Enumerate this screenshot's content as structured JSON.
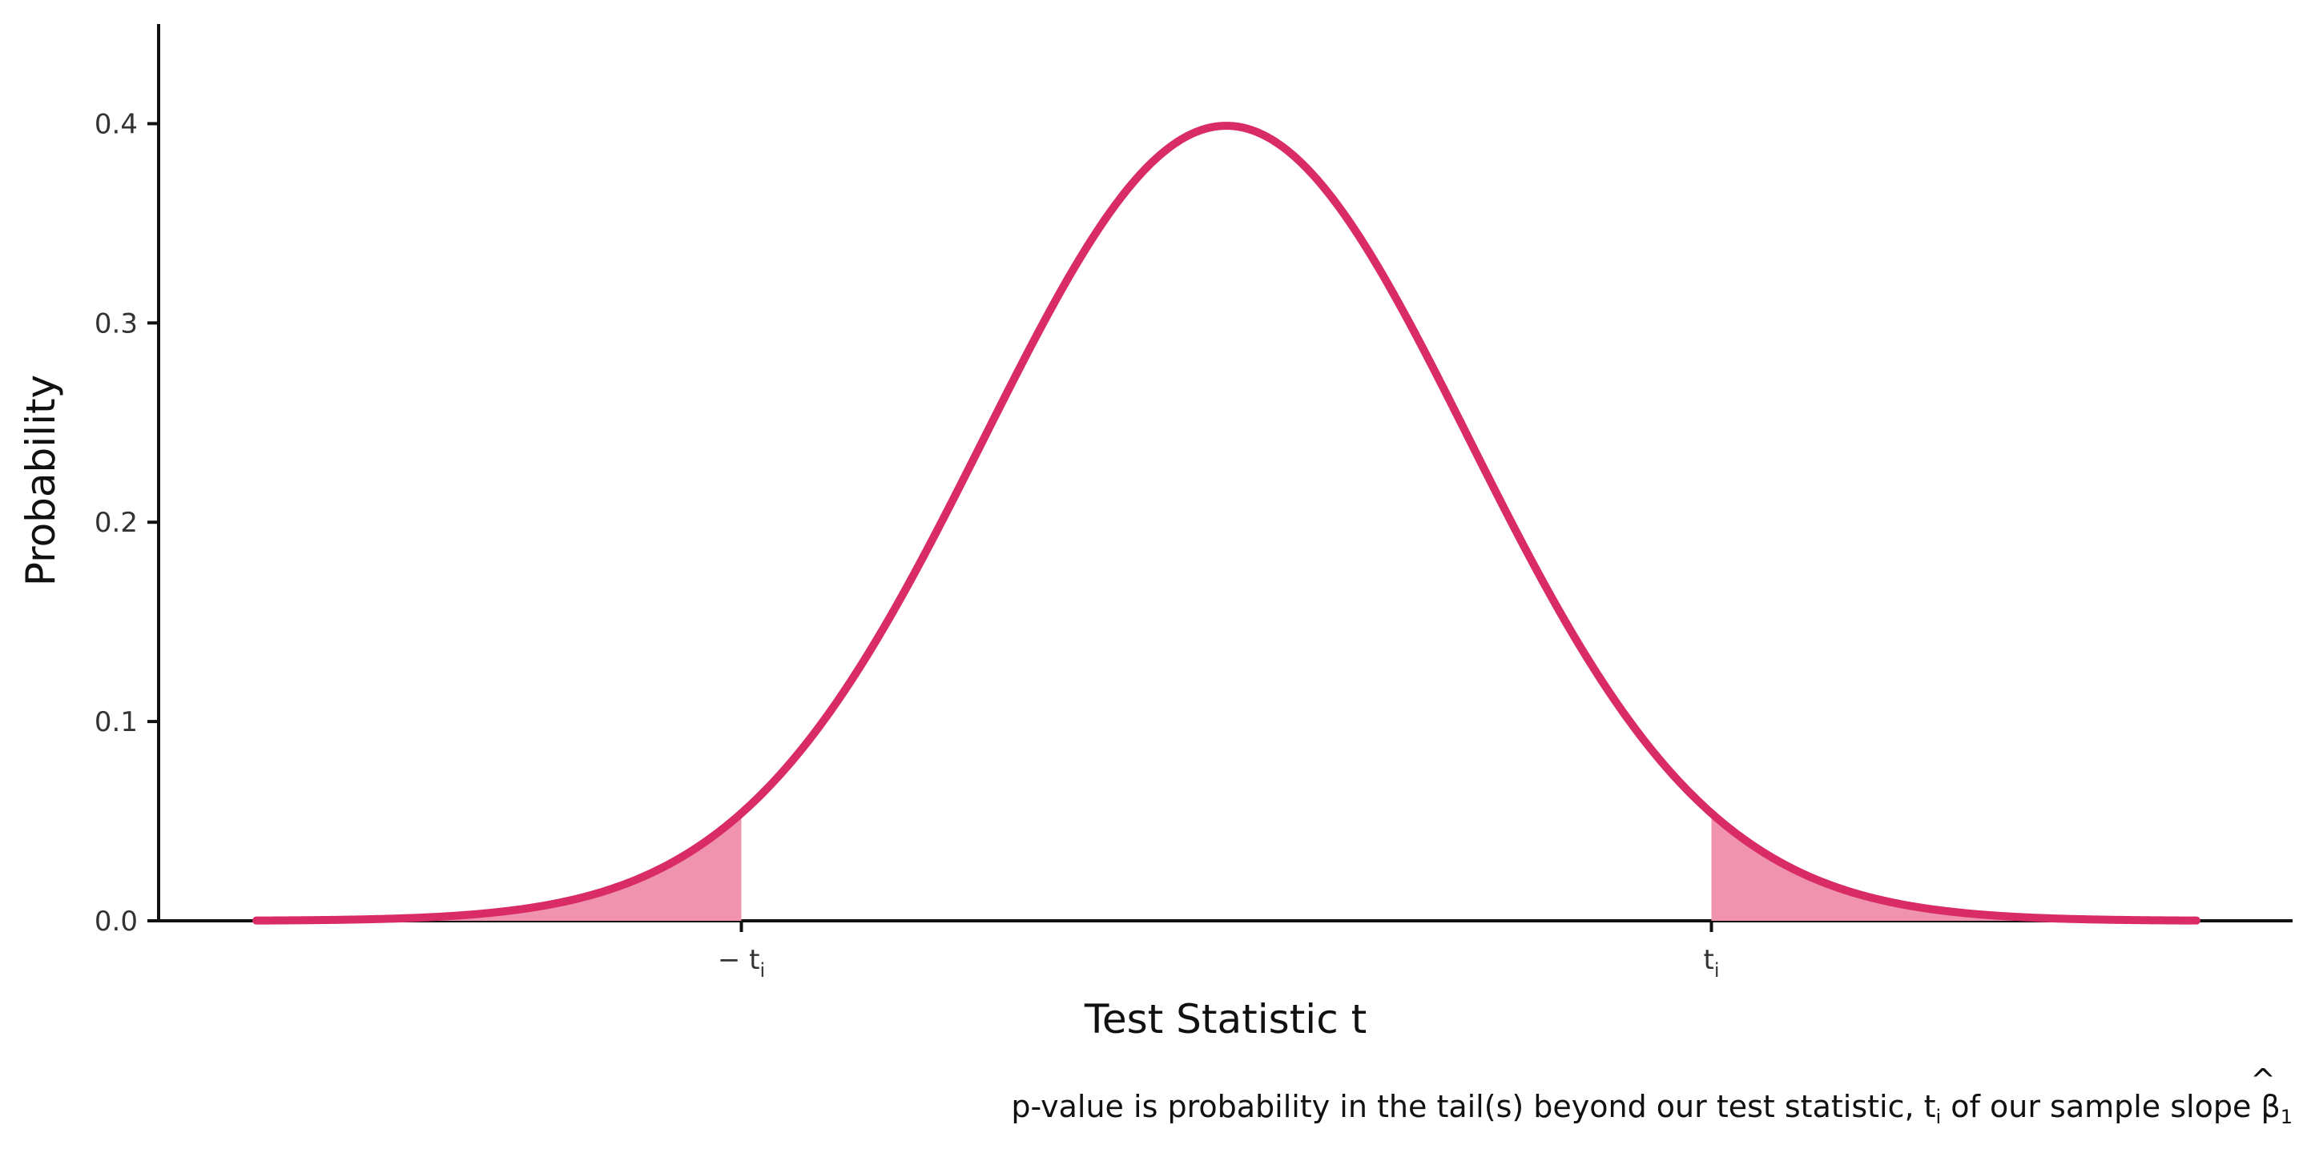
{
  "chart_data": {
    "type": "line",
    "title": "",
    "xlabel": "Test Statistic t",
    "ylabel": "Probability",
    "caption_prefix": "p-value is probability in the tail(s) beyond our test statistic, t",
    "caption_sub": "i",
    "caption_middle": " of our sample slope ",
    "caption_beta": "β",
    "caption_beta_sub": "1",
    "caption_hat": "^",
    "distribution": "t",
    "x_range": [
      -4,
      4
    ],
    "critical_value": 2,
    "ylim": [
      0,
      0.45
    ],
    "y_ticks": [
      0.0,
      0.1,
      0.2,
      0.3,
      0.4
    ],
    "y_tick_labels": [
      "0.0",
      "0.1",
      "0.2",
      "0.3",
      "0.4"
    ],
    "x_ticks": [
      {
        "value": -2,
        "label": "− t",
        "sub": "i"
      },
      {
        "value": 2,
        "label": "t",
        "sub": "i"
      }
    ],
    "grid": false,
    "line_color": "#D92C66",
    "tail_fill_color": "#F093AE",
    "axis_color": "#111111"
  }
}
